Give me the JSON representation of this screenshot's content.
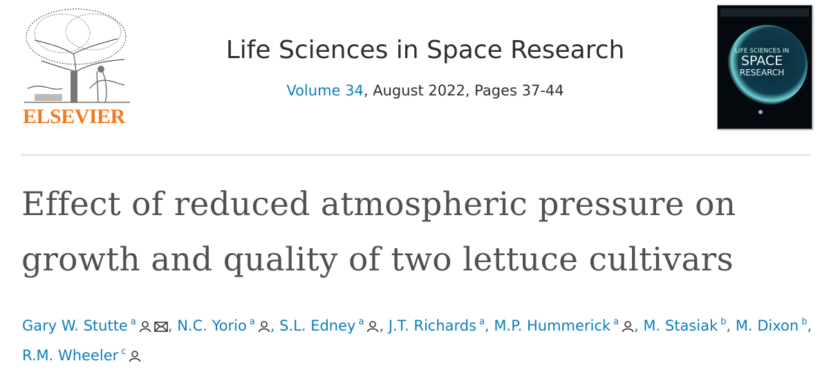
{
  "header": {
    "publisher": "ELSEVIER",
    "journal": "Life Sciences in Space Research",
    "volume": "Volume 34",
    "issue_info": ", August 2022, Pages 37-44",
    "cover": {
      "line1": "LIFE SCIENCES IN",
      "line2": "SPACE",
      "line3": "RESEARCH"
    }
  },
  "article": {
    "title": "Effect of reduced atmospheric pressure on growth and quality of two lettuce cultivars",
    "author_separator": ",",
    "authors": [
      {
        "name": "Gary W. Stutte",
        "affiliation": "a",
        "person_icon": true,
        "email_icon": true
      },
      {
        "name": "N.C. Yorio",
        "affiliation": "a",
        "person_icon": true,
        "email_icon": false
      },
      {
        "name": "S.L. Edney",
        "affiliation": "a",
        "person_icon": true,
        "email_icon": false
      },
      {
        "name": "J.T. Richards",
        "affiliation": "a",
        "person_icon": false,
        "email_icon": false
      },
      {
        "name": "M.P. Hummerick",
        "affiliation": "a",
        "person_icon": true,
        "email_icon": false
      },
      {
        "name": "M. Stasiak",
        "affiliation": "b",
        "person_icon": false,
        "email_icon": false
      },
      {
        "name": "M. Dixon",
        "affiliation": "b",
        "person_icon": false,
        "email_icon": false
      },
      {
        "name": "R.M. Wheeler",
        "affiliation": "c",
        "person_icon": true,
        "email_icon": false
      }
    ]
  }
}
